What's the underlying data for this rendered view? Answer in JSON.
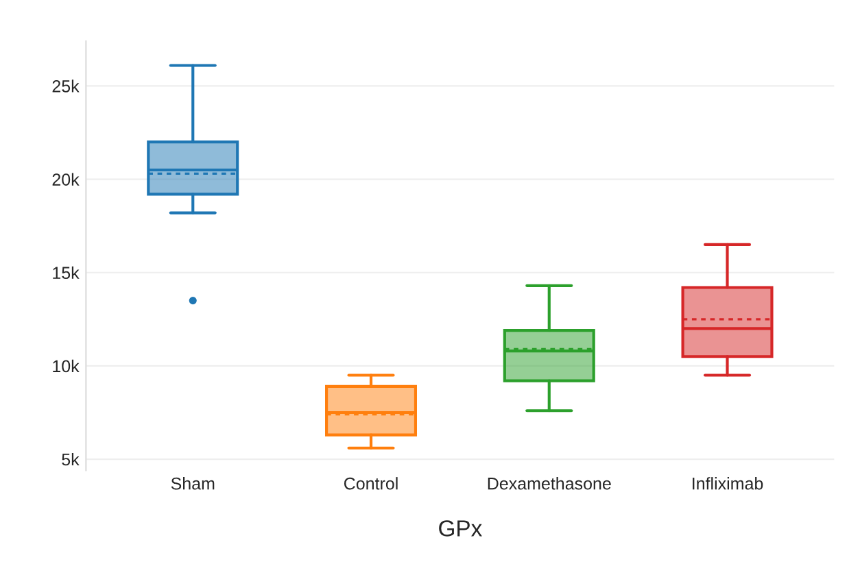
{
  "chart_data": {
    "type": "box",
    "xlabel": "GPx",
    "categories": [
      "Sham",
      "Control",
      "Dexamethasone",
      "Infliximab"
    ],
    "colors": [
      "#1f77b4",
      "#ff7f0e",
      "#2ca02c",
      "#d62728"
    ],
    "boxes": [
      {
        "low": 18200,
        "q1": 19200,
        "median": 20500,
        "q3": 22000,
        "high": 26100,
        "mean": 20300,
        "outliers": [
          13500
        ]
      },
      {
        "low": 5600,
        "q1": 6300,
        "median": 7500,
        "q3": 8900,
        "high": 9500,
        "mean": 7400
      },
      {
        "low": 7600,
        "q1": 9200,
        "median": 10800,
        "q3": 11900,
        "high": 14300,
        "mean": 10900
      },
      {
        "low": 9500,
        "q1": 10500,
        "median": 12000,
        "q3": 14200,
        "high": 16500,
        "mean": 12500
      }
    ],
    "ylim": [
      4400,
      27400
    ],
    "yticks": [
      {
        "value": 5000,
        "label": "5k"
      },
      {
        "value": 10000,
        "label": "10k"
      },
      {
        "value": 15000,
        "label": "15k"
      },
      {
        "value": 20000,
        "label": "20k"
      },
      {
        "value": 25000,
        "label": "25k"
      }
    ],
    "grid": "y"
  }
}
